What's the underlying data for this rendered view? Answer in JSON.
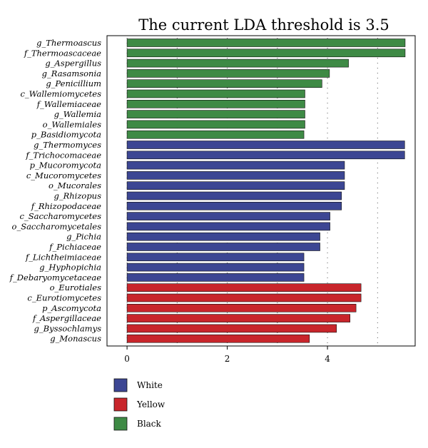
{
  "chart_data": {
    "type": "bar",
    "orientation": "horizontal",
    "title": "The current LDA threshold is 3.5",
    "xlim": [
      -0.4,
      5.75
    ],
    "xticks": [
      0,
      2,
      4
    ],
    "grid": "dotted vertical",
    "categories": [
      "g_Thermoascus",
      "f_Thermoascaceae",
      "g_Aspergillus",
      "g_Rasamsonia",
      "g_Penicillium",
      "c_Wallemiomycetes",
      "f_Wallemiaceae",
      "g_Wallemia",
      "o_Wallemiales",
      "p_Basidiomycota",
      "g_Thermomyces",
      "f_Trichocomaceae",
      "p_Mucoromycota",
      "c_Mucoromycetes",
      "o_Mucorales",
      "g_Rhizopus",
      "f_Rhizopodaceae",
      "c_Saccharomycetes",
      "o_Saccharomycetales",
      "g_Pichia",
      "f_Pichiaceae",
      "f_Lichtheimiaceae",
      "g_Hyphopichia",
      "f_Debaryomycetaceae",
      "o_Eurotiales",
      "c_Eurotiomycetes",
      "p_Ascomycota",
      "f_Aspergillaceae",
      "g_Byssochlamys",
      "g_Monascus"
    ],
    "values": [
      5.55,
      5.55,
      4.42,
      4.04,
      3.89,
      3.55,
      3.55,
      3.55,
      3.55,
      3.53,
      5.54,
      5.54,
      4.34,
      4.34,
      4.34,
      4.28,
      4.28,
      4.05,
      4.05,
      3.85,
      3.85,
      3.53,
      3.53,
      3.53,
      4.67,
      4.67,
      4.57,
      4.45,
      4.18,
      3.64
    ],
    "groups": [
      "Black",
      "Black",
      "Black",
      "Black",
      "Black",
      "Black",
      "Black",
      "Black",
      "Black",
      "Black",
      "White",
      "White",
      "White",
      "White",
      "White",
      "White",
      "White",
      "White",
      "White",
      "White",
      "White",
      "White",
      "White",
      "White",
      "Yellow",
      "Yellow",
      "Yellow",
      "Yellow",
      "Yellow",
      "Yellow"
    ],
    "legend": {
      "placement": "bottom-left",
      "entries": [
        {
          "name": "White",
          "color": "#3c4693"
        },
        {
          "name": "Yellow",
          "color": "#c8252b"
        },
        {
          "name": "Black",
          "color": "#3e8a45"
        }
      ]
    }
  }
}
